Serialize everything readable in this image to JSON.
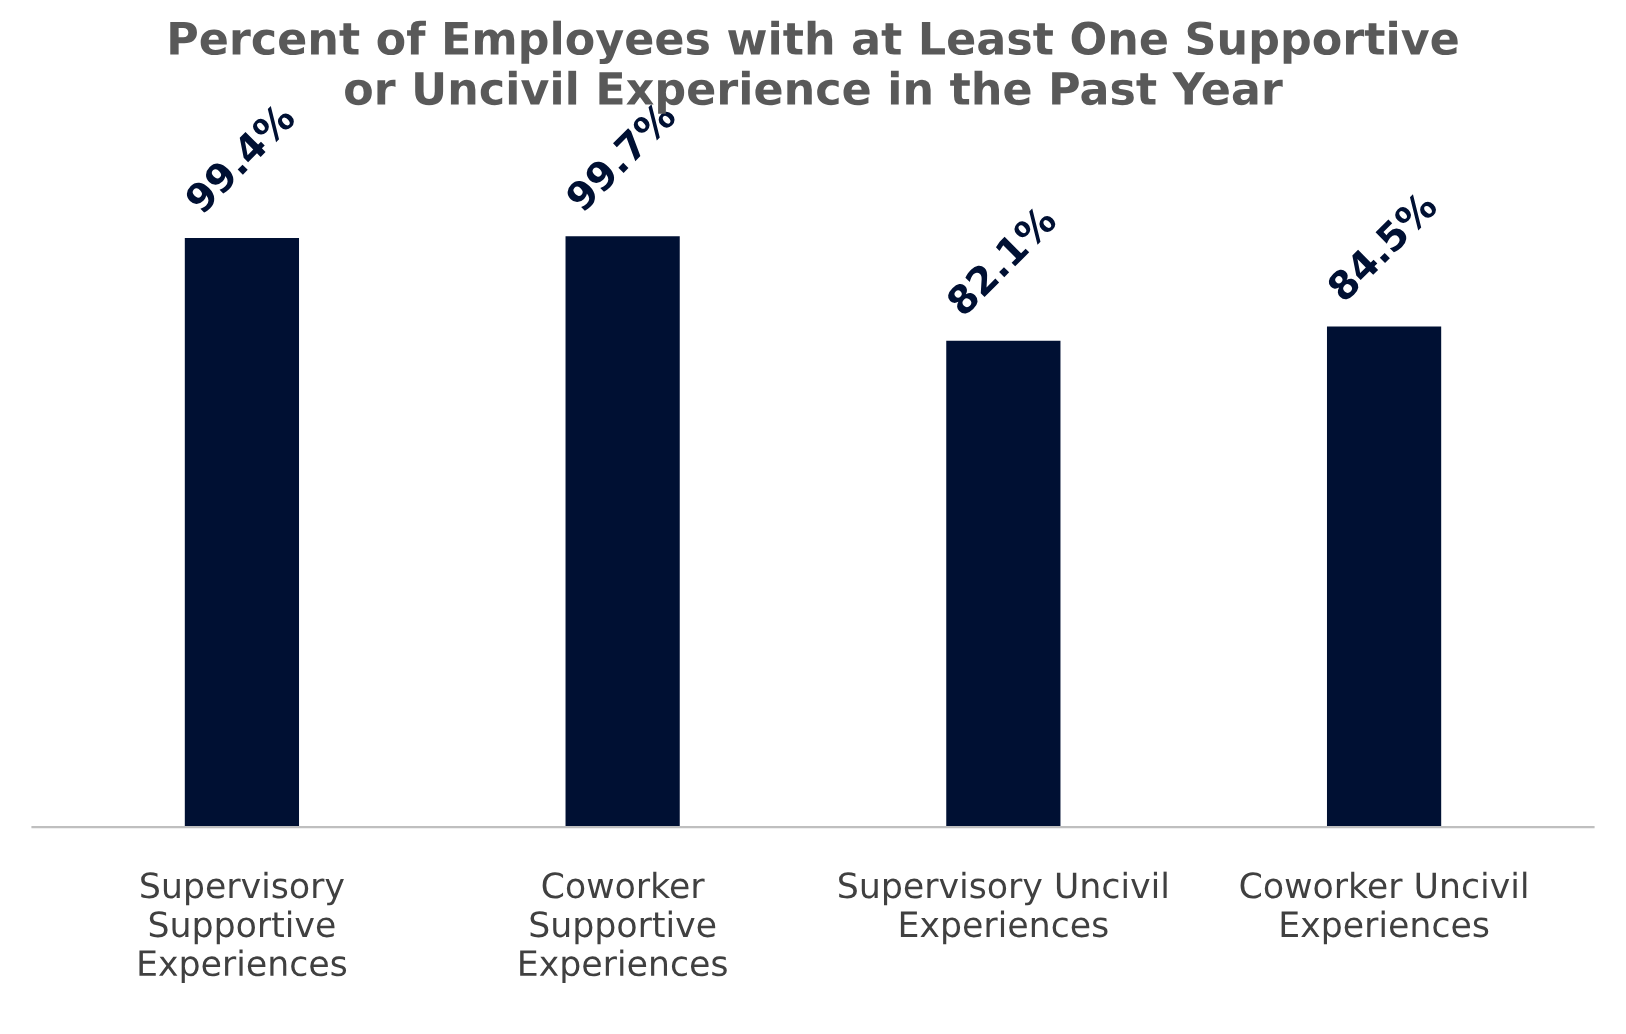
{
  "chart_data": {
    "type": "bar",
    "title": "Percent of Employees with at Least One Supportive\nor Uncivil Experience in the Past Year",
    "categories": [
      "Supervisory\nSupportive\nExperiences",
      "Coworker\nSupportive\nExperiences",
      "Supervisory Uncivil\nExperiences",
      "Coworker Uncivil\nExperiences"
    ],
    "values": [
      99.4,
      99.7,
      82.1,
      84.5
    ],
    "value_labels": [
      "99.4%",
      "99.7%",
      "82.1%",
      "84.5%"
    ],
    "color": "#001033",
    "grid": false,
    "legend": false
  }
}
